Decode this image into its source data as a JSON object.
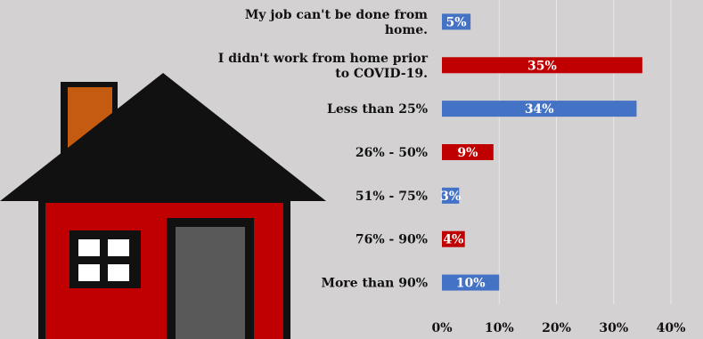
{
  "chart_data": {
    "type": "bar",
    "orientation": "horizontal",
    "categories": [
      [
        "My job can't be done from",
        "home."
      ],
      [
        "I didn't work from home prior",
        "to COVID-19."
      ],
      [
        "Less than 25%"
      ],
      [
        "26% -  50%"
      ],
      [
        "51% - 75%"
      ],
      [
        "76% - 90%"
      ],
      [
        "More than 90%"
      ]
    ],
    "values": [
      5,
      35,
      34,
      9,
      3,
      4,
      10
    ],
    "value_labels": [
      "5%",
      "35%",
      "34%",
      "9%",
      "3%",
      "4%",
      "10%"
    ],
    "bar_colors": [
      "#4472c4",
      "#c00000",
      "#4472c4",
      "#c00000",
      "#4472c4",
      "#c00000",
      "#4472c4"
    ],
    "xlim": [
      0,
      40
    ],
    "xticks": [
      0,
      10,
      20,
      30,
      40
    ],
    "xtick_labels": [
      "0%",
      "10%",
      "20%",
      "30%",
      "40%"
    ],
    "grid": true,
    "title": "",
    "xlabel": "",
    "ylabel": ""
  },
  "colors": {
    "background": "#d3d1d1",
    "gridline": "#e8e8e8",
    "house_wall": "#c00000",
    "house_roof": "#111111",
    "chimney": "#c55a11",
    "door": "#595959",
    "window_pane": "#ffffff"
  },
  "illustration": {
    "icon": "house-icon"
  }
}
